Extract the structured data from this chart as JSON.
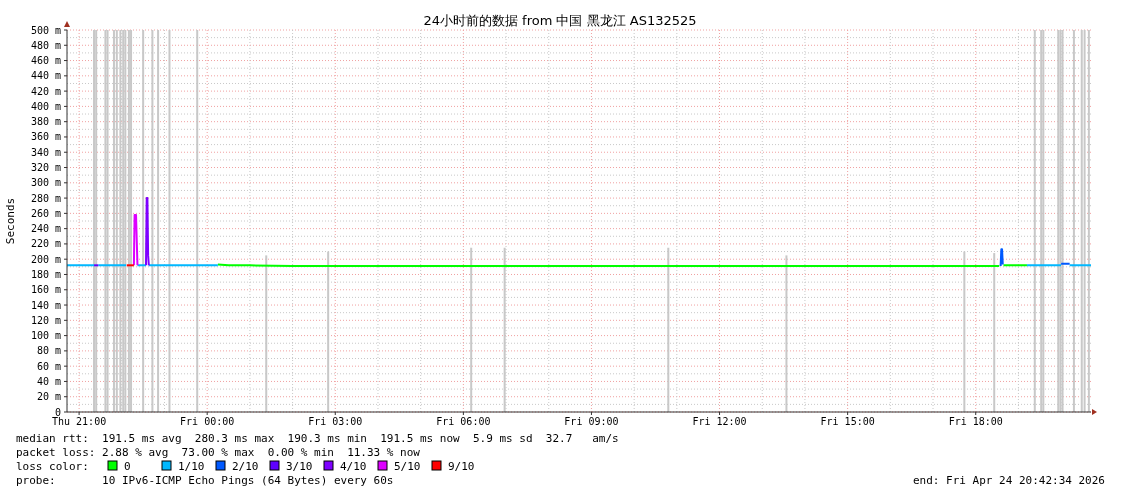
{
  "chart_data": {
    "type": "line",
    "title": "24小时前的数据 from 中国 黑龙江 AS132525",
    "ylabel": "Seconds",
    "legend_title": "loss color:",
    "legend": "bottom",
    "grid": true,
    "marker": "none",
    "line_style": "solid",
    "xlim": [
      "2026-04-23T20:43",
      "2026-04-24T20:42"
    ],
    "xticks": [
      {
        "value": "2026-04-23T21:00",
        "label": "Thu 21:00"
      },
      {
        "value": "2026-04-24T00:00",
        "label": "Fri 00:00"
      },
      {
        "value": "2026-04-24T03:00",
        "label": "Fri 03:00"
      },
      {
        "value": "2026-04-24T06:00",
        "label": "Fri 06:00"
      },
      {
        "value": "2026-04-24T09:00",
        "label": "Fri 09:00"
      },
      {
        "value": "2026-04-24T12:00",
        "label": "Fri 12:00"
      },
      {
        "value": "2026-04-24T15:00",
        "label": "Fri 15:00"
      },
      {
        "value": "2026-04-24T18:00",
        "label": "Fri 18:00"
      }
    ],
    "ylim": [
      0,
      500
    ],
    "yticks": [
      {
        "value": 0,
        "label": "0"
      },
      {
        "value": 20,
        "label": "20 m"
      },
      {
        "value": 40,
        "label": "40 m"
      },
      {
        "value": 60,
        "label": "60 m"
      },
      {
        "value": 80,
        "label": "80 m"
      },
      {
        "value": 100,
        "label": "100 m"
      },
      {
        "value": 120,
        "label": "120 m"
      },
      {
        "value": 140,
        "label": "140 m"
      },
      {
        "value": 160,
        "label": "160 m"
      },
      {
        "value": 180,
        "label": "180 m"
      },
      {
        "value": 200,
        "label": "200 m"
      },
      {
        "value": 220,
        "label": "220 m"
      },
      {
        "value": 240,
        "label": "240 m"
      },
      {
        "value": 260,
        "label": "260 m"
      },
      {
        "value": 280,
        "label": "280 m"
      },
      {
        "value": 300,
        "label": "300 m"
      },
      {
        "value": 320,
        "label": "320 m"
      },
      {
        "value": 340,
        "label": "340 m"
      },
      {
        "value": 360,
        "label": "360 m"
      },
      {
        "value": 380,
        "label": "380 m"
      },
      {
        "value": 400,
        "label": "400 m"
      },
      {
        "value": 420,
        "label": "420 m"
      },
      {
        "value": 440,
        "label": "440 m"
      },
      {
        "value": 460,
        "label": "460 m"
      },
      {
        "value": 480,
        "label": "480 m"
      },
      {
        "value": 500,
        "label": "500 m"
      }
    ],
    "series": [
      {
        "type": "bar",
        "color": "#c8c8c8",
        "x": [
          "2026-04-23T21:21",
          "2026-04-23T21:24",
          "2026-04-23T21:37",
          "2026-04-23T21:40",
          "2026-04-23T21:49",
          "2026-04-23T21:53",
          "2026-04-23T21:58",
          "2026-04-23T22:02",
          "2026-04-23T22:05",
          "2026-04-23T22:10",
          "2026-04-23T22:13",
          "2026-04-23T22:30",
          "2026-04-23T22:43",
          "2026-04-23T22:51",
          "2026-04-23T23:07",
          "2026-04-23T23:46",
          "2026-04-24T01:23",
          "2026-04-24T02:50",
          "2026-04-24T06:11",
          "2026-04-24T06:58",
          "2026-04-24T10:48",
          "2026-04-24T13:34",
          "2026-04-24T17:44",
          "2026-04-24T18:26",
          "2026-04-24T19:23",
          "2026-04-24T19:32",
          "2026-04-24T19:35",
          "2026-04-24T19:56",
          "2026-04-24T19:59",
          "2026-04-24T20:02",
          "2026-04-24T20:18",
          "2026-04-24T20:29",
          "2026-04-24T20:33",
          "2026-04-24T20:39"
        ],
        "values": [
          500,
          500,
          500,
          500,
          500,
          500,
          500,
          500,
          500,
          500,
          500,
          500,
          500,
          500,
          500,
          500,
          205,
          210,
          215,
          215,
          215,
          205,
          210,
          208,
          500,
          500,
          500,
          500,
          500,
          500,
          500,
          500,
          500,
          500
        ]
      },
      {
        "name": "0",
        "color": "#00ff00",
        "x": [
          "2026-04-24T00:15",
          "2026-04-24T00:30",
          "2026-04-24T01:00",
          "2026-04-24T02:00",
          "2026-04-24T04:00",
          "2026-04-24T06:00",
          "2026-04-24T08:00",
          "2026-04-24T10:00",
          "2026-04-24T12:00",
          "2026-04-24T14:00",
          "2026-04-24T16:00",
          "2026-04-24T18:00",
          "2026-04-24T18:33",
          "2026-04-24T18:34",
          "2026-04-24T18:39",
          "2026-04-24T18:54",
          "2026-04-24T19:12"
        ],
        "values": [
          193,
          192,
          192,
          191,
          191,
          191,
          191,
          191,
          191,
          191,
          191,
          191,
          191,
          null,
          192,
          192,
          192
        ]
      },
      {
        "name": "1/10",
        "color": "#00b8ff",
        "x": [
          "2026-04-23T20:43",
          "2026-04-23T21:21",
          "2026-04-23T21:22",
          "2026-04-23T21:27",
          "2026-04-23T22:06",
          "2026-04-23T22:07",
          "2026-04-23T22:22",
          "2026-04-23T22:34",
          "2026-04-23T22:35",
          "2026-04-23T22:38",
          "2026-04-24T00:15",
          "2026-04-24T00:16",
          "2026-04-24T19:12",
          "2026-04-24T20:00",
          "2026-04-24T20:01",
          "2026-04-24T20:12",
          "2026-04-24T20:42"
        ],
        "values": [
          192,
          192,
          null,
          192,
          192,
          null,
          192,
          192,
          null,
          192,
          192,
          null,
          192,
          192,
          null,
          192,
          192
        ]
      },
      {
        "name": "2/10",
        "color": "#0059ff",
        "x": [
          "2026-04-24T18:35",
          "2026-04-24T18:36",
          "2026-04-24T18:37",
          "2026-04-24T18:38",
          "2026-04-24T18:39",
          "2026-04-24T20:00",
          "2026-04-24T20:12"
        ],
        "values": [
          191,
          213,
          213,
          193,
          null,
          194,
          194
        ]
      },
      {
        "name": "3/10",
        "color": "#5e00ff",
        "x": [
          "2026-04-23T21:21",
          "2026-04-23T21:27"
        ],
        "values": [
          192,
          192
        ]
      },
      {
        "name": "4/10",
        "color": "#7e00ff",
        "x": [
          "2026-04-23T22:34",
          "2026-04-23T22:35",
          "2026-04-23T22:36",
          "2026-04-23T22:37",
          "2026-04-23T22:38"
        ],
        "values": [
          192,
          280,
          280,
          205,
          192
        ]
      },
      {
        "name": "5/10",
        "color": "#dd00ff",
        "x": [
          "2026-04-23T22:17",
          "2026-04-23T22:18",
          "2026-04-23T22:20",
          "2026-04-23T22:22"
        ],
        "values": [
          192,
          258,
          258,
          192
        ]
      },
      {
        "name": "9/10",
        "color": "#ff0000",
        "x": [
          "2026-04-23T22:07",
          "2026-04-23T22:17"
        ],
        "values": [
          192,
          192
        ]
      }
    ],
    "annotations": [
      "median rtt:  191.5 ms avg  280.3 ms max  190.3 ms min  191.5 ms now  5.9 ms sd  32.7   am/s",
      "packet loss: 2.88 % avg  73.00 % max  0.00 % min  11.33 % now",
      "probe:       10 IPv6-ICMP Echo Pings (64 Bytes) every 60s",
      "end: Fri Apr 24 20:42:34 2026"
    ]
  }
}
